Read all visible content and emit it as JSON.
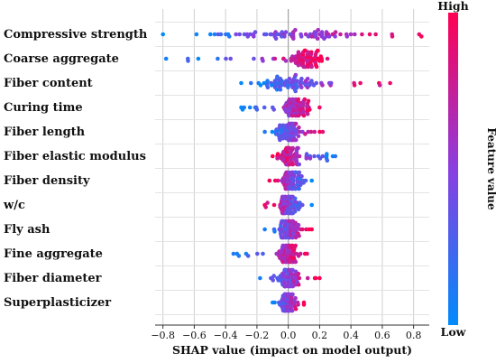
{
  "chart_data": {
    "type": "scatter",
    "subtype": "shap-beeswarm",
    "xlabel": "SHAP value (impact on model output)",
    "xlim": [
      -0.85,
      0.9
    ],
    "xticks": [
      "−0.8",
      "−0.6",
      "−0.4",
      "−0.2",
      "0.0",
      "0.2",
      "0.4",
      "0.6",
      "0.8"
    ],
    "xtick_values": [
      -0.8,
      -0.6,
      -0.4,
      -0.2,
      0.0,
      0.2,
      0.4,
      0.6,
      0.8
    ],
    "grid": true,
    "colorbar": {
      "title": "Feature value",
      "high": "High",
      "low": "Low",
      "high_color": "#ff0052",
      "low_color": "#008bfb"
    },
    "features": [
      {
        "name": "Compressive strength",
        "min": -0.8,
        "max": 0.85,
        "center": 0.0,
        "spread": 0.45,
        "pos_high": true
      },
      {
        "name": "Coarse aggregate",
        "min": -0.78,
        "max": 0.25,
        "center": 0.1,
        "spread": 0.12,
        "pos_high": true
      },
      {
        "name": "Fiber content",
        "min": -0.3,
        "max": 0.65,
        "center": 0.0,
        "spread": 0.15,
        "pos_high": true
      },
      {
        "name": "Curing time",
        "min": -0.3,
        "max": 0.2,
        "center": 0.05,
        "spread": 0.08,
        "pos_high": true
      },
      {
        "name": "Fiber length",
        "min": -0.15,
        "max": 0.22,
        "center": 0.0,
        "spread": 0.07,
        "pos_high": true
      },
      {
        "name": "Fiber elastic modulus",
        "min": -0.1,
        "max": 0.3,
        "center": 0.0,
        "spread": 0.06,
        "pos_high": false
      },
      {
        "name": "Fiber density",
        "min": -0.12,
        "max": 0.15,
        "center": 0.02,
        "spread": 0.06,
        "pos_high": false
      },
      {
        "name": "w/c",
        "min": -0.15,
        "max": 0.15,
        "center": 0.0,
        "spread": 0.06,
        "pos_high": false
      },
      {
        "name": "Fly ash",
        "min": -0.15,
        "max": 0.15,
        "center": 0.0,
        "spread": 0.06,
        "pos_high": true
      },
      {
        "name": "Fine aggregate",
        "min": -0.35,
        "max": 0.12,
        "center": 0.0,
        "spread": 0.06,
        "pos_high": true
      },
      {
        "name": "Fiber diameter",
        "min": -0.18,
        "max": 0.2,
        "center": 0.0,
        "spread": 0.05,
        "pos_high": true
      },
      {
        "name": "Superplasticizer",
        "min": -0.1,
        "max": 0.1,
        "center": 0.0,
        "spread": 0.04,
        "pos_high": true
      }
    ]
  }
}
